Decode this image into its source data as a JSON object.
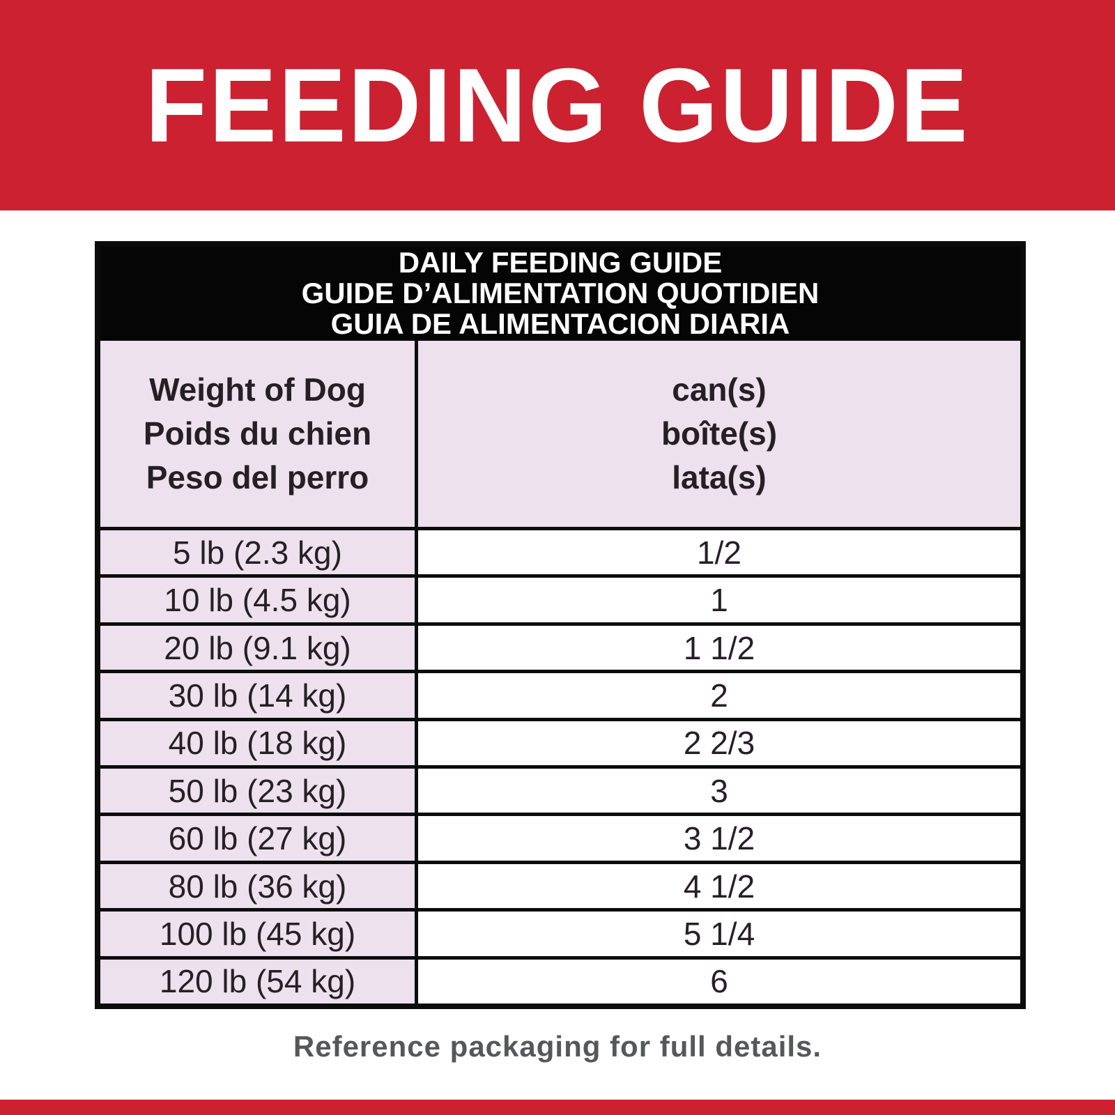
{
  "banner": {
    "title": "FEEDING GUIDE"
  },
  "table": {
    "heading_lines": [
      "DAILY FEEDING GUIDE",
      "GUIDE D’ALIMENTATION QUOTIDIEN",
      "GUIA DE ALIMENTACION DIARIA"
    ],
    "column_headers": {
      "weight_lines": [
        "Weight of Dog",
        "Poids du chien",
        "Peso del perro"
      ],
      "cans_lines": [
        "can(s)",
        "boîte(s)",
        "lata(s)"
      ]
    },
    "rows": [
      {
        "weight": "5 lb (2.3 kg)",
        "cans": "1/2"
      },
      {
        "weight": "10 lb (4.5 kg)",
        "cans": "1"
      },
      {
        "weight": "20 lb (9.1 kg)",
        "cans": "1 1/2"
      },
      {
        "weight": "30 lb (14 kg)",
        "cans": "2"
      },
      {
        "weight": "40 lb (18 kg)",
        "cans": "2 2/3"
      },
      {
        "weight": "50 lb (23 kg)",
        "cans": "3"
      },
      {
        "weight": "60 lb (27 kg)",
        "cans": "3 1/2"
      },
      {
        "weight": "80 lb (36 kg)",
        "cans": "4 1/2"
      },
      {
        "weight": "100 lb (45 kg)",
        "cans": "5 1/4"
      },
      {
        "weight": "120 lb (54 kg)",
        "cans": "6"
      }
    ]
  },
  "footer": {
    "note": "Reference packaging for full details."
  },
  "colors": {
    "banner_red": "#cb2130",
    "row_pink": "#ece1ec",
    "header_black": "#060506",
    "border_black": "#0d0c0d",
    "table_text": "#262026",
    "footer_gray": "#565759"
  }
}
